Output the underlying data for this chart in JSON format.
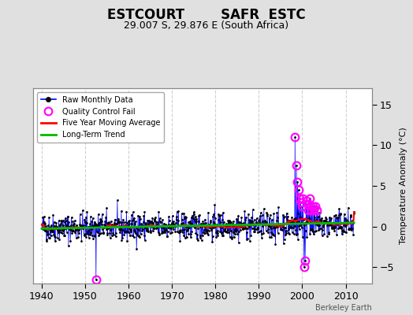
{
  "title1": "ESTCOURT        SAFR  ESTC",
  "title2": "29.007 S, 29.876 E (South Africa)",
  "ylabel": "Temperature Anomaly (°C)",
  "xlabel_bottom": "Berkeley Earth",
  "xlim": [
    1938,
    2016
  ],
  "ylim": [
    -7,
    17
  ],
  "yticks": [
    -5,
    0,
    5,
    10,
    15
  ],
  "xticks": [
    1940,
    1950,
    1960,
    1970,
    1980,
    1990,
    2000,
    2010
  ],
  "plot_bg_color": "#ffffff",
  "outer_bg_color": "#e0e0e0",
  "grid_color": "#d0d0d0",
  "raw_line_color": "#0000ff",
  "raw_dot_color": "#000000",
  "qc_fail_color": "#ff00ff",
  "moving_avg_color": "#ff0000",
  "trend_color": "#00bb00",
  "seed": 42,
  "n_points": 864,
  "start_year": 1940,
  "noise_scale": 0.85,
  "qc_fail_indices": [
    150,
    700,
    704,
    707,
    710,
    713,
    716,
    719,
    722,
    725,
    728,
    731,
    734,
    737,
    740,
    743,
    746,
    749,
    752,
    755,
    760
  ],
  "qc_fail_values": [
    -6.5,
    11.0,
    7.5,
    5.5,
    4.5,
    3.5,
    3.0,
    2.5,
    3.5,
    -5.0,
    -4.2,
    3.2,
    2.8,
    2.0,
    3.5,
    2.5,
    2.0,
    2.5,
    2.0,
    2.5,
    2.0
  ]
}
